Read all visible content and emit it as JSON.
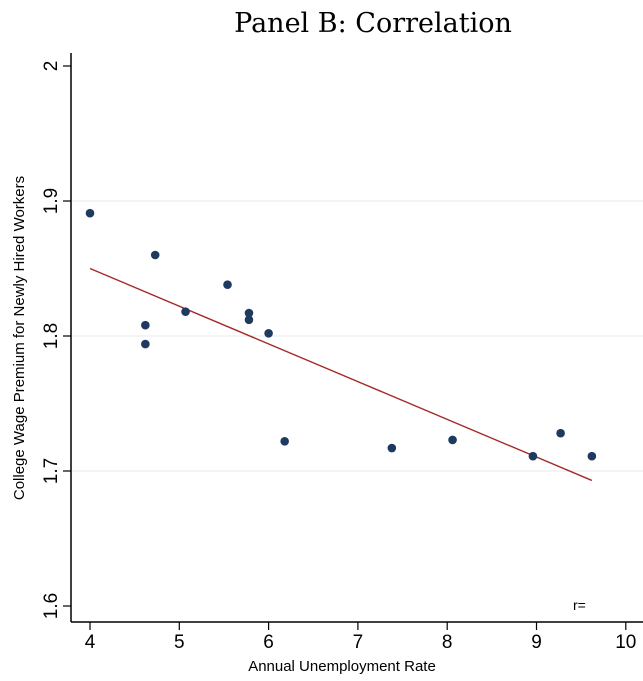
{
  "panel_title": "Panel B:  Correlation",
  "chart_data": {
    "type": "scatter",
    "title": "Panel B:  Correlation",
    "xlabel": "Annual Unemployment Rate",
    "ylabel": "College Wage Premium for Newly Hired Workers",
    "xlim": [
      3.8,
      10.1
    ],
    "ylim": [
      1.6,
      2.0
    ],
    "x_ticks": [
      4,
      5,
      6,
      7,
      8,
      9,
      10
    ],
    "y_ticks": [
      1.6,
      1.7,
      1.8,
      1.9,
      2
    ],
    "y_tick_labels": [
      "1.6",
      "1.7",
      "1.8",
      "1.9",
      "2"
    ],
    "grid": "horizontal",
    "points": [
      {
        "x": 4.0,
        "y": 1.891
      },
      {
        "x": 4.62,
        "y": 1.808
      },
      {
        "x": 4.62,
        "y": 1.794
      },
      {
        "x": 4.73,
        "y": 1.86
      },
      {
        "x": 5.07,
        "y": 1.818
      },
      {
        "x": 5.54,
        "y": 1.838
      },
      {
        "x": 5.78,
        "y": 1.817
      },
      {
        "x": 5.78,
        "y": 1.812
      },
      {
        "x": 6.0,
        "y": 1.802
      },
      {
        "x": 6.18,
        "y": 1.722
      },
      {
        "x": 7.38,
        "y": 1.717
      },
      {
        "x": 8.06,
        "y": 1.723
      },
      {
        "x": 8.96,
        "y": 1.711
      },
      {
        "x": 9.27,
        "y": 1.728
      },
      {
        "x": 9.62,
        "y": 1.711
      }
    ],
    "fit_line": {
      "x": [
        4.0,
        9.62
      ],
      "y": [
        1.85,
        1.693
      ],
      "color": "#a52a2a"
    },
    "point_color": "#1f3a5f",
    "annotation": "r="
  }
}
